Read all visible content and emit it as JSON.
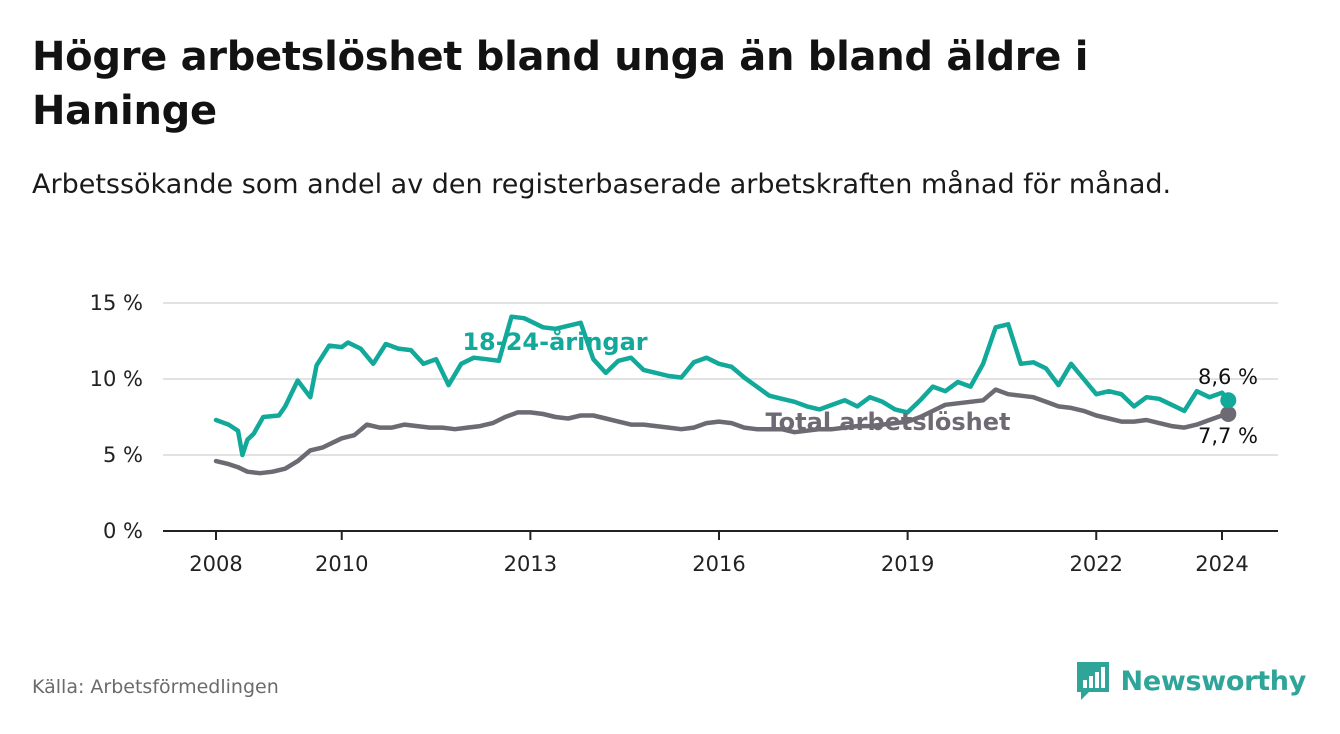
{
  "title": "Högre arbetslöshet bland unga än bland äldre i Haninge",
  "subtitle": "Arbetssökande som andel av den registerbaserade arbetskraften månad för månad.",
  "source": "Källa: Arbetsförmedlingen",
  "brand": {
    "name": "Newsworthy",
    "icon": "newsworthy-logo-icon"
  },
  "colors": {
    "youth": "#12a89a",
    "total": "#6e6a73",
    "grid": "#d9d9d9",
    "axis": "#222222"
  },
  "chart_data": {
    "type": "line",
    "title": "Högre arbetslöshet bland unga än bland äldre i Haninge",
    "xlabel": "",
    "ylabel": "",
    "xlim": [
      2007.7,
      2025.0
    ],
    "ylim": [
      0,
      15
    ],
    "x_ticks": [
      2008,
      2010,
      2013,
      2016,
      2019,
      2022,
      2024
    ],
    "x_tick_labels": [
      "2008",
      "2010",
      "2013",
      "2016",
      "2019",
      "2022",
      "2024"
    ],
    "y_ticks": [
      0,
      5,
      10,
      15
    ],
    "y_tick_labels": [
      "0 %",
      "5 %",
      "10 %",
      "15 %"
    ],
    "grid": true,
    "series": [
      {
        "name": "18-24-åringar",
        "label": "18-24-åringar",
        "end_label": "8,6 %",
        "x": [
          2008.0,
          2008.2,
          2008.35,
          2008.42,
          2008.5,
          2008.6,
          2008.75,
          2009.0,
          2009.1,
          2009.3,
          2009.5,
          2009.6,
          2009.8,
          2010.0,
          2010.1,
          2010.3,
          2010.5,
          2010.7,
          2010.9,
          2011.1,
          2011.3,
          2011.5,
          2011.7,
          2011.9,
          2012.1,
          2012.3,
          2012.5,
          2012.7,
          2012.9,
          2013.0,
          2013.2,
          2013.4,
          2013.6,
          2013.8,
          2014.0,
          2014.2,
          2014.4,
          2014.6,
          2014.8,
          2015.0,
          2015.2,
          2015.4,
          2015.6,
          2015.8,
          2016.0,
          2016.2,
          2016.4,
          2016.6,
          2016.8,
          2017.0,
          2017.2,
          2017.4,
          2017.6,
          2017.8,
          2018.0,
          2018.2,
          2018.4,
          2018.6,
          2018.8,
          2019.0,
          2019.2,
          2019.4,
          2019.6,
          2019.8,
          2020.0,
          2020.2,
          2020.4,
          2020.6,
          2020.8,
          2021.0,
          2021.2,
          2021.4,
          2021.6,
          2021.8,
          2022.0,
          2022.2,
          2022.4,
          2022.6,
          2022.8,
          2023.0,
          2023.2,
          2023.4,
          2023.6,
          2023.8,
          2024.0,
          2024.1
        ],
        "values": [
          7.3,
          7.0,
          6.6,
          5.0,
          6.0,
          6.4,
          7.5,
          7.6,
          8.2,
          9.9,
          8.8,
          10.9,
          12.2,
          12.1,
          12.4,
          12.0,
          11.0,
          12.3,
          12.0,
          11.9,
          11.0,
          11.3,
          9.6,
          11.0,
          11.4,
          11.3,
          11.2,
          14.1,
          14.0,
          13.8,
          13.4,
          13.3,
          13.5,
          13.7,
          11.3,
          10.4,
          11.2,
          11.4,
          10.6,
          10.4,
          10.2,
          10.1,
          11.1,
          11.4,
          11.0,
          10.8,
          10.1,
          9.5,
          8.9,
          8.7,
          8.5,
          8.2,
          8.0,
          8.3,
          8.6,
          8.2,
          8.8,
          8.5,
          8.0,
          7.8,
          8.6,
          9.5,
          9.2,
          9.8,
          9.5,
          11.0,
          13.4,
          13.6,
          11.0,
          11.1,
          10.7,
          9.6,
          11.0,
          10.0,
          9.0,
          9.2,
          9.0,
          8.2,
          8.8,
          8.7,
          8.3,
          7.9,
          9.2,
          8.8,
          9.1,
          8.6
        ]
      },
      {
        "name": "Total arbetslöshet",
        "label": "Total arbetslöshet",
        "end_label": "7,7 %",
        "x": [
          2008.0,
          2008.2,
          2008.35,
          2008.5,
          2008.7,
          2008.9,
          2009.1,
          2009.3,
          2009.5,
          2009.7,
          2009.9,
          2010.0,
          2010.2,
          2010.4,
          2010.6,
          2010.8,
          2011.0,
          2011.2,
          2011.4,
          2011.6,
          2011.8,
          2012.0,
          2012.2,
          2012.4,
          2012.6,
          2012.8,
          2013.0,
          2013.2,
          2013.4,
          2013.6,
          2013.8,
          2014.0,
          2014.2,
          2014.4,
          2014.6,
          2014.8,
          2015.0,
          2015.2,
          2015.4,
          2015.6,
          2015.8,
          2016.0,
          2016.2,
          2016.4,
          2016.6,
          2016.8,
          2017.0,
          2017.2,
          2017.4,
          2017.6,
          2017.8,
          2018.0,
          2018.2,
          2018.4,
          2018.6,
          2018.8,
          2019.0,
          2019.2,
          2019.4,
          2019.6,
          2019.8,
          2020.0,
          2020.2,
          2020.4,
          2020.6,
          2020.8,
          2021.0,
          2021.2,
          2021.4,
          2021.6,
          2021.8,
          2022.0,
          2022.2,
          2022.4,
          2022.6,
          2022.8,
          2023.0,
          2023.2,
          2023.4,
          2023.6,
          2023.8,
          2024.0,
          2024.1
        ],
        "values": [
          4.6,
          4.4,
          4.2,
          3.9,
          3.8,
          3.9,
          4.1,
          4.6,
          5.3,
          5.5,
          5.9,
          6.1,
          6.3,
          7.0,
          6.8,
          6.8,
          7.0,
          6.9,
          6.8,
          6.8,
          6.7,
          6.8,
          6.9,
          7.1,
          7.5,
          7.8,
          7.8,
          7.7,
          7.5,
          7.4,
          7.6,
          7.6,
          7.4,
          7.2,
          7.0,
          7.0,
          6.9,
          6.8,
          6.7,
          6.8,
          7.1,
          7.2,
          7.1,
          6.8,
          6.7,
          6.7,
          6.7,
          6.5,
          6.6,
          6.7,
          6.7,
          6.8,
          6.9,
          6.9,
          7.0,
          7.1,
          7.2,
          7.5,
          7.9,
          8.3,
          8.4,
          8.5,
          8.6,
          9.3,
          9.0,
          8.9,
          8.8,
          8.5,
          8.2,
          8.1,
          7.9,
          7.6,
          7.4,
          7.2,
          7.2,
          7.3,
          7.1,
          6.9,
          6.8,
          7.0,
          7.3,
          7.6,
          7.7
        ]
      }
    ]
  }
}
